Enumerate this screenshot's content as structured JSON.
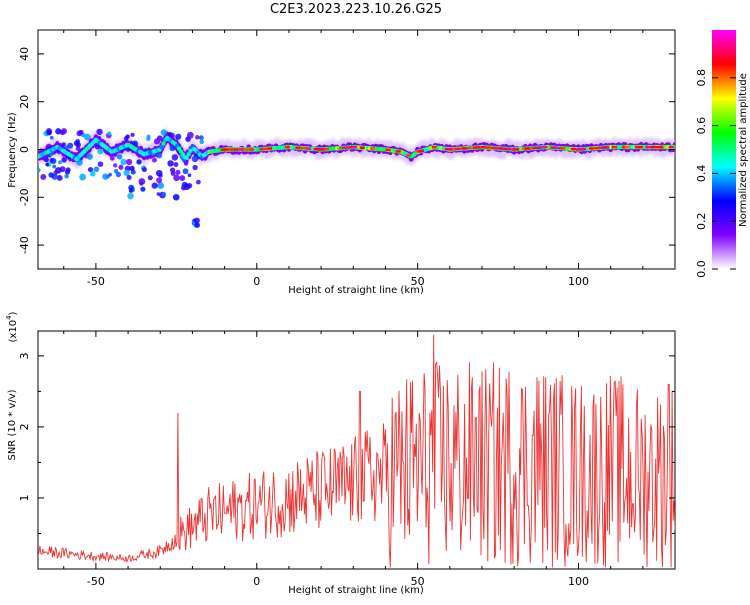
{
  "figure_title": "C2E3.2023.223.10.26.G25",
  "chart_data": [
    {
      "type": "heatmap",
      "xlabel": "Height of straight line (km)",
      "ylabel": "Frequency (Hz)",
      "xlim": [
        -68,
        130
      ],
      "ylim": [
        -50,
        50
      ],
      "xticks": [
        -50,
        0,
        50,
        100
      ],
      "yticks": [
        -40,
        -20,
        0,
        20,
        40
      ],
      "colorbar": {
        "label": "Normalized spectral amplitude",
        "range": [
          0,
          1
        ],
        "ticks": [
          "0.0",
          "0.2",
          "0.4",
          "0.6",
          "0.8"
        ],
        "colormap": [
          "#ffffff",
          "#8000ff",
          "#0000ff",
          "#00ffff",
          "#00ff00",
          "#ffff00",
          "#ff0000",
          "#ff00ff"
        ]
      },
      "ridge": {
        "x": [
          -68,
          -62,
          -56,
          -50,
          -45,
          -40,
          -35,
          -30,
          -28,
          -25,
          -22,
          -20,
          -17,
          -15,
          -10,
          0,
          10,
          20,
          30,
          40,
          45,
          48,
          50,
          55,
          60,
          70,
          80,
          90,
          100,
          110,
          120,
          130
        ],
        "y": [
          -3,
          1,
          -4,
          4,
          -1,
          2,
          -2,
          0,
          5,
          2,
          -4,
          1,
          -3,
          -1,
          0,
          0,
          1,
          0,
          1,
          0,
          -1,
          -3,
          -1,
          1,
          0,
          1,
          0,
          1,
          0,
          1,
          1,
          1
        ]
      },
      "scatter_clusters": [
        {
          "x_range": [
            -68,
            -40
          ],
          "y_range": [
            -12,
            8
          ]
        },
        {
          "x_range": [
            -40,
            -25
          ],
          "y_range": [
            -20,
            8
          ]
        },
        {
          "x_range": [
            -25,
            -17
          ],
          "y_range": [
            -18,
            6
          ]
        },
        {
          "x_range": [
            -20,
            -18
          ],
          "y_range": [
            -32,
            -28
          ]
        }
      ]
    },
    {
      "type": "line",
      "xlabel": "Height of straight line (km)",
      "ylabel": "SNR (10 * v/v)",
      "y_multiplier": "(x10",
      "y_multiplier_exp": "4",
      "y_multiplier_close": ")",
      "xlim": [
        -68,
        130
      ],
      "ylim": [
        0,
        3.35
      ],
      "xticks": [
        -50,
        0,
        50,
        100
      ],
      "yticks": [
        1,
        2,
        3
      ],
      "series": [
        {
          "color": "#ee3333",
          "trend_x": [
            -68,
            -60,
            -50,
            -40,
            -30,
            -25,
            -20,
            -15,
            -10,
            -5,
            0,
            5,
            10,
            15,
            20,
            25,
            30,
            35,
            40,
            50,
            60,
            70,
            80,
            90,
            100,
            110,
            120,
            130
          ],
          "trend_y": [
            0.25,
            0.22,
            0.18,
            0.15,
            0.25,
            0.45,
            0.6,
            0.75,
            0.8,
            0.85,
            0.9,
            0.95,
            1.0,
            1.05,
            1.1,
            1.15,
            1.2,
            1.3,
            1.35,
            1.45,
            1.5,
            1.45,
            1.5,
            1.45,
            1.35,
            1.4,
            1.3,
            1.35
          ],
          "peaks": [
            {
              "x": -24.5,
              "y": 2.2
            },
            {
              "x": 55,
              "y": 3.3
            },
            {
              "x": 32,
              "y": 2.5
            },
            {
              "x": 69,
              "y": 2.5
            },
            {
              "x": 87,
              "y": 2.7
            },
            {
              "x": 128,
              "y": 2.6
            }
          ]
        }
      ]
    }
  ]
}
